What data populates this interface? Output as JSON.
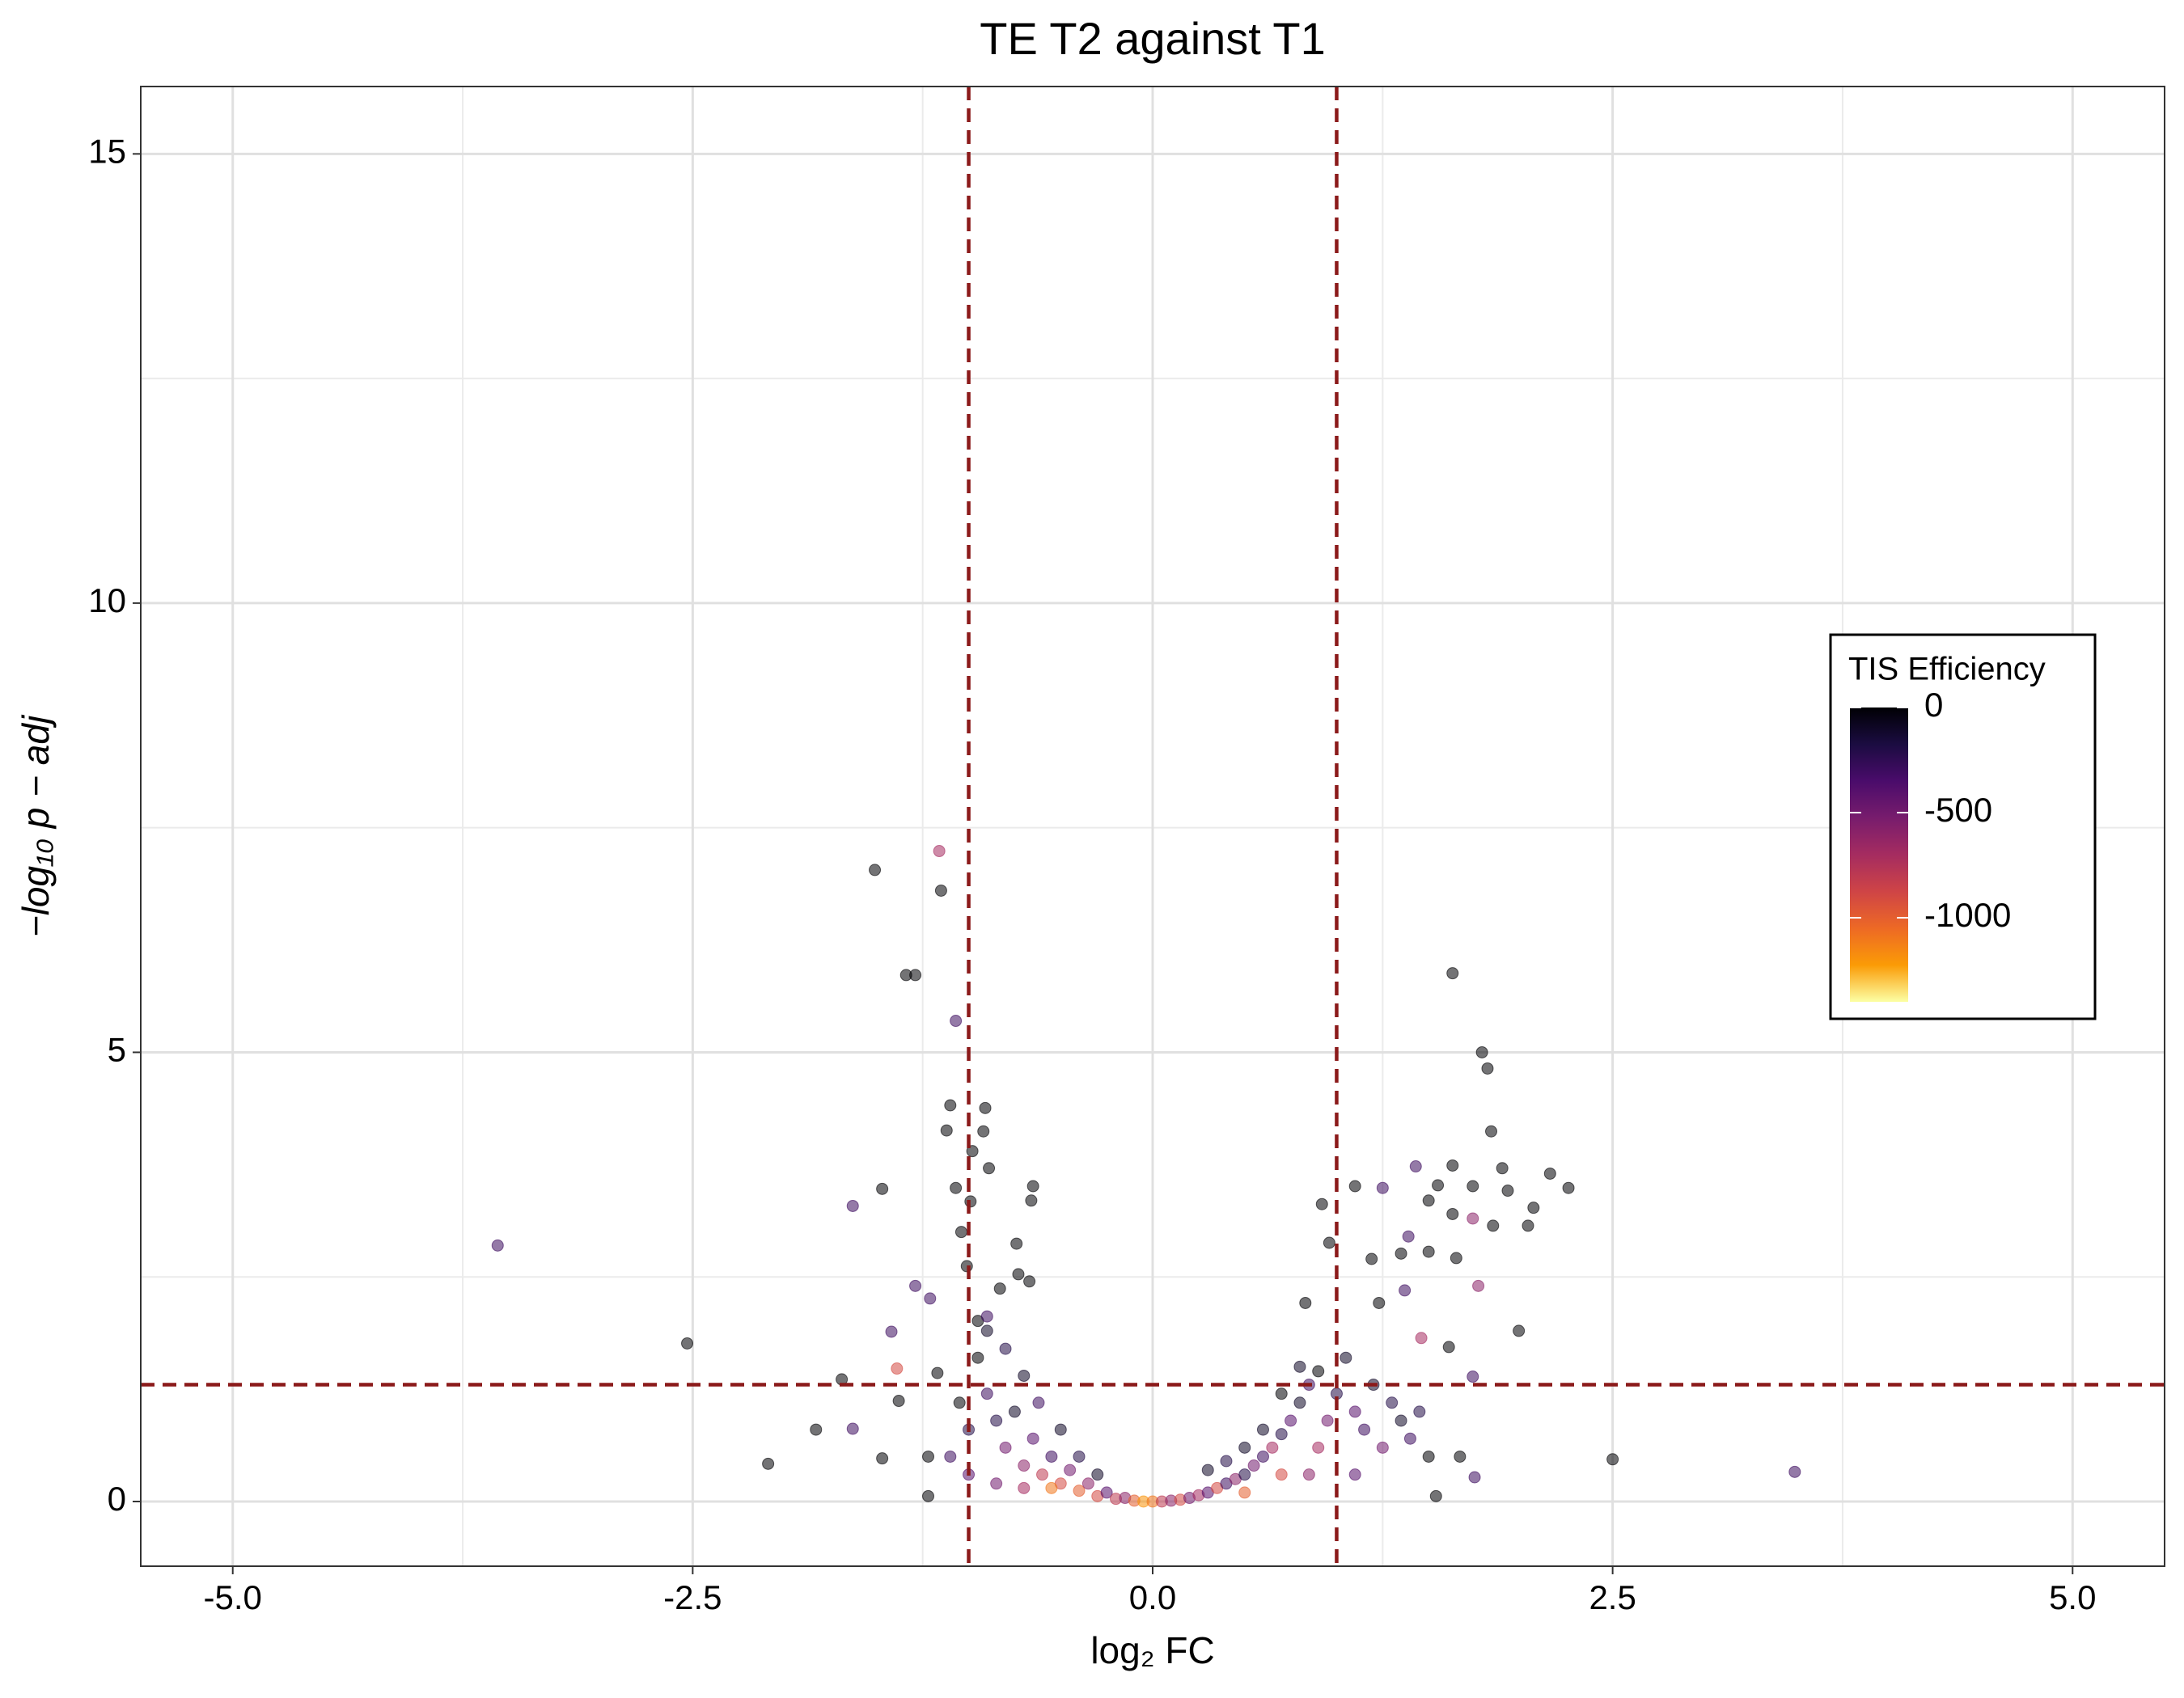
{
  "chart_data": {
    "type": "scatter",
    "title": "TE T2 against T1",
    "x_label": "log₂ FC",
    "y_label": "−log₁₀ p − adj",
    "xlim": [
      -5.5,
      5.5
    ],
    "ylim": [
      -0.72,
      15.75
    ],
    "xticks": [
      {
        "value": -5,
        "label": "-5.0"
      },
      {
        "value": -2.5,
        "label": "-2.5"
      },
      {
        "value": 0,
        "label": "0.0"
      },
      {
        "value": 2.5,
        "label": "2.5"
      },
      {
        "value": 5,
        "label": "5.0"
      }
    ],
    "yticks": [
      0,
      5,
      10,
      15
    ],
    "x_minor_grid": [
      -3.75,
      -1.25,
      1.25,
      3.75
    ],
    "y_minor_grid": [
      2.5,
      7.5,
      12.5
    ],
    "grid": true,
    "vlines": [
      -1,
      1
    ],
    "hlines": [
      1.301
    ],
    "threshold_color": "#8b1a1a",
    "colormap": "inferno",
    "color_lim": [
      -1400,
      0
    ],
    "color_ticks": [
      0,
      -500,
      -1000
    ],
    "legend_title": "TIS Efficiency",
    "legend_position": "right",
    "x": [
      -3.56,
      -2.53,
      -2.09,
      -1.51,
      -1.16,
      -1.15,
      -1.34,
      -1.29,
      -1.07,
      -1.47,
      -1.63,
      1.63,
      1.79,
      1.82,
      1.84,
      2.16,
      2.26,
      2.5,
      3.49,
      1.99,
      2.07,
      -1.1,
      -0.91,
      -1.12,
      -0.92,
      -0.98,
      -0.89,
      -0.65,
      -1.07,
      -0.99,
      -1.04,
      -1.01,
      -1.29,
      -1.21,
      -0.66,
      -0.74,
      1.63,
      1.43,
      1.55,
      1.74,
      1.9,
      1.93,
      1.5,
      0.92,
      1.1,
      1.25,
      2.04,
      1.85,
      1.74,
      1.77,
      1.63,
      1.39,
      0.96,
      1.5,
      1.65,
      1.35,
      1.19,
      1.37,
      1.23,
      0.83,
      1.46,
      1.74,
      1.61,
      1.67,
      1.75,
      1.54,
      -1.22,
      -1.47,
      -1.63,
      -1.83,
      -1.69,
      -1.38,
      -1.39,
      -1.42,
      -1.17,
      -1.22,
      -0.67,
      -0.83,
      -0.73,
      -0.95,
      -0.9,
      -0.9,
      -0.85,
      -0.8,
      -0.75,
      -0.7,
      -0.65,
      -0.6,
      -0.55,
      -0.5,
      -0.45,
      -0.4,
      -0.35,
      -0.3,
      -0.25,
      -0.2,
      -0.15,
      -0.1,
      -0.05,
      0,
      0.05,
      0.1,
      0.15,
      0.2,
      0.25,
      0.3,
      0.35,
      0.4,
      0.45,
      0.5,
      0.55,
      0.6,
      0.65,
      0.7,
      0.75,
      0.8,
      0.85,
      0.9,
      0.95,
      1.0,
      1.05,
      1.1,
      1.15,
      1.2,
      1.25,
      1.3,
      1.35,
      1.4,
      1.45,
      1.5,
      -1.0,
      -1.05,
      -1.1,
      -0.95,
      -0.9,
      -0.8,
      -0.7,
      -0.62,
      -0.5,
      -0.4,
      -0.3,
      0.3,
      0.4,
      0.5,
      0.6,
      0.7,
      0.8,
      0.9,
      0.7,
      0.5,
      -0.55,
      -0.7,
      -0.85,
      0.85,
      1.1,
      -1.0
    ],
    "y": [
      2.85,
      1.76,
      0.42,
      7.03,
      7.24,
      6.8,
      5.86,
      5.86,
      5.35,
      3.48,
      3.29,
      5.88,
      5.0,
      4.82,
      4.12,
      3.65,
      3.49,
      0.47,
      0.33,
      1.9,
      3.27,
      4.41,
      4.38,
      4.13,
      4.12,
      3.9,
      3.71,
      3.51,
      3.49,
      3.34,
      3.0,
      2.62,
      2.4,
      2.26,
      3.35,
      2.87,
      3.74,
      3.73,
      3.52,
      3.51,
      3.71,
      3.46,
      3.35,
      3.31,
      3.51,
      3.49,
      3.07,
      3.07,
      3.15,
      2.4,
      3.2,
      2.95,
      2.88,
      2.78,
      2.71,
      2.76,
      2.7,
      2.35,
      2.21,
      2.21,
      1.82,
      1.39,
      1.72,
      0.5,
      0.27,
      0.06,
      0.06,
      0.48,
      0.81,
      0.8,
      1.36,
      1.12,
      1.48,
      1.89,
      1.43,
      0.5,
      2.45,
      2.37,
      2.53,
      2.01,
      2.06,
      1.2,
      0.9,
      0.6,
      1.0,
      0.4,
      0.7,
      0.3,
      0.5,
      0.2,
      0.35,
      0.12,
      0.2,
      0.06,
      0.1,
      0.03,
      0.04,
      0.01,
      0.0,
      0.0,
      0.0,
      0.01,
      0.02,
      0.04,
      0.07,
      0.1,
      0.15,
      0.2,
      0.25,
      0.3,
      0.4,
      0.5,
      0.6,
      0.75,
      0.9,
      1.1,
      1.3,
      1.45,
      0.9,
      1.2,
      1.6,
      1.0,
      0.8,
      1.3,
      0.6,
      1.1,
      0.9,
      0.7,
      1.0,
      0.5,
      0.8,
      1.1,
      0.5,
      1.6,
      1.9,
      1.7,
      1.4,
      1.1,
      0.8,
      0.5,
      0.3,
      0.35,
      0.45,
      0.6,
      0.8,
      1.2,
      1.5,
      0.6,
      0.3,
      0.1,
      0.15,
      0.15,
      0.2,
      0.3,
      0.3,
      0.3
    ],
    "color_values": [
      -300,
      0,
      0,
      0,
      -700,
      0,
      0,
      0,
      -300,
      0,
      -300,
      0,
      0,
      0,
      0,
      0,
      0,
      0,
      -300,
      0,
      0,
      0,
      0,
      0,
      0,
      0,
      0,
      0,
      0,
      0,
      0,
      0,
      -300,
      -300,
      0,
      0,
      0,
      -300,
      0,
      0,
      0,
      0,
      0,
      0,
      0,
      -300,
      0,
      0,
      -600,
      -600,
      0,
      -300,
      0,
      0,
      0,
      0,
      0,
      -300,
      0,
      0,
      -700,
      -300,
      0,
      0,
      -300,
      0,
      0,
      0,
      -300,
      0,
      0,
      0,
      -900,
      -300,
      0,
      0,
      0,
      0,
      0,
      0,
      -300,
      -300,
      -200,
      -500,
      -100,
      -600,
      -400,
      -800,
      -300,
      -900,
      -500,
      -1000,
      -600,
      -900,
      -400,
      -800,
      -600,
      -1000,
      -1200,
      -1100,
      -800,
      -600,
      -900,
      -500,
      -700,
      -400,
      -900,
      -300,
      -600,
      -200,
      -500,
      -300,
      -700,
      -200,
      -400,
      -100,
      -300,
      0,
      -500,
      -200,
      -100,
      -400,
      -300,
      -100,
      -500,
      -200,
      -100,
      -300,
      -200,
      0,
      -200,
      0,
      -300,
      0,
      -100,
      -200,
      -100,
      -300,
      -100,
      -200,
      -100,
      -100,
      -200,
      -100,
      -100,
      0,
      -100,
      -700,
      -900,
      -1000,
      -1100,
      -700,
      -500,
      -600,
      -400,
      -400
    ]
  }
}
